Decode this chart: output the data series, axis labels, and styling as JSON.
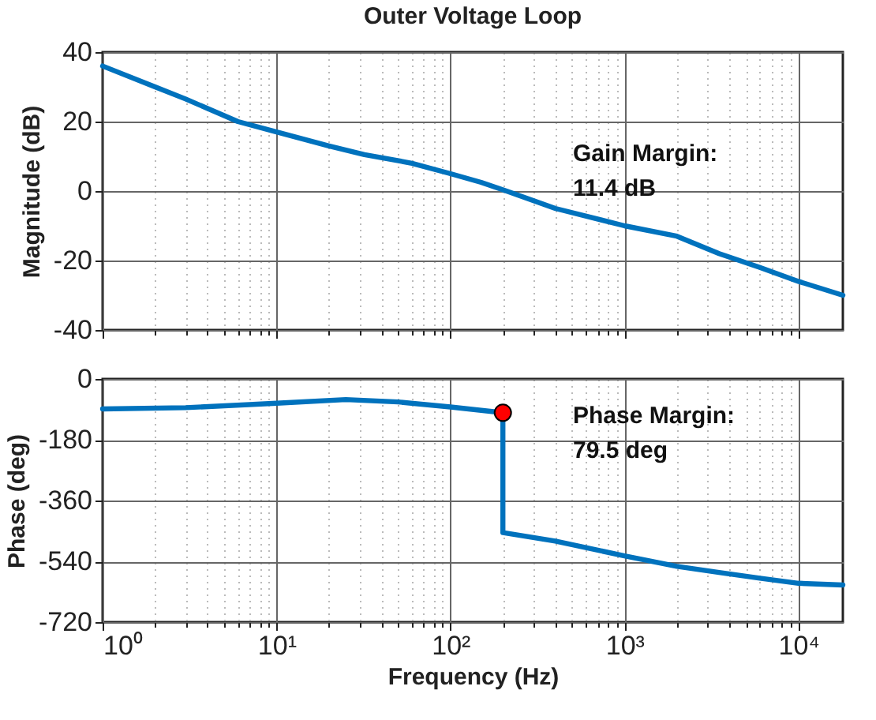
{
  "chart_data": [
    {
      "type": "line",
      "title": "Outer Voltage Loop",
      "ylabel": "Magnitude (dB)",
      "log": "x",
      "grid": true,
      "tick_labels": "y",
      "line_style": "solid",
      "marker": "none",
      "xlim": [
        1,
        18000
      ],
      "xticks": [
        {
          "value": 1,
          "label": null
        },
        {
          "value": 10,
          "label": null
        },
        {
          "value": 100,
          "label": null
        },
        {
          "value": 1000,
          "label": null
        },
        {
          "value": 10000,
          "label": null
        }
      ],
      "ylim": [
        -40,
        40
      ],
      "yticks": [
        -40,
        -20,
        0,
        20,
        40
      ],
      "annotations": [
        "Gain Margin:",
        "11.4 dB"
      ],
      "series": [
        {
          "color": "#0072bd",
          "x": [
            1,
            2,
            3,
            6,
            10,
            20,
            32,
            60,
            100,
            150,
            210,
            400,
            1000,
            2000,
            3500,
            6000,
            10000,
            18000
          ],
          "values": [
            36,
            30,
            26.5,
            20,
            17,
            13,
            10.5,
            8,
            5,
            2.5,
            0,
            -5,
            -10,
            -13,
            -18,
            -22,
            -26,
            -30
          ]
        }
      ]
    },
    {
      "type": "line",
      "ylabel": "Phase (deg)",
      "xlabel": "Frequency  (Hz)",
      "log": "x",
      "grid": true,
      "line_style": "solid",
      "marker": "none",
      "xlim": [
        1,
        18000
      ],
      "xticks": [
        {
          "value": 1,
          "label": "10⁰"
        },
        {
          "value": 10,
          "label": "10¹"
        },
        {
          "value": 100,
          "label": "10²"
        },
        {
          "value": 1000,
          "label": "10³"
        },
        {
          "value": 10000,
          "label": "10⁴"
        }
      ],
      "ylim": [
        -720,
        0
      ],
      "yticks": [
        -720,
        -540,
        -360,
        -180,
        0
      ],
      "annotations": [
        "Phase Margin:",
        "79.5 deg"
      ],
      "series": [
        {
          "color": "#0072bd",
          "x": [
            1,
            3,
            10,
            25,
            50,
            100,
            150,
            200,
            200,
            400,
            1000,
            2000,
            3500,
            6000,
            10000,
            18000
          ],
          "values": [
            -89,
            -85,
            -72,
            -61,
            -68,
            -83,
            -93,
            -100,
            -455,
            -480,
            -524,
            -555,
            -573,
            -590,
            -605,
            -610
          ]
        },
        {
          "type": "scatter",
          "color": "#ff0000",
          "marker": "circle",
          "x": [
            200
          ],
          "values": [
            -100
          ]
        }
      ]
    }
  ]
}
